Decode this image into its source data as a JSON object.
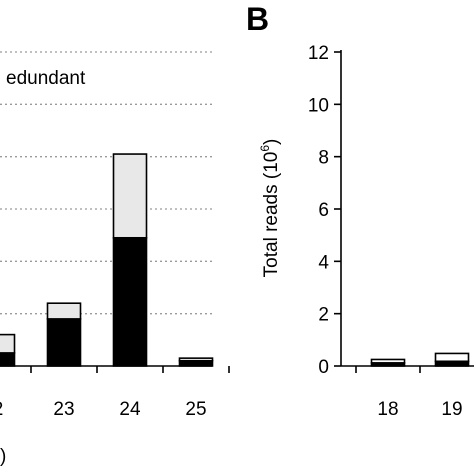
{
  "chart_data": [
    {
      "type": "bar",
      "stacked": true,
      "legend_text": "edundant",
      "categories": [
        "2",
        "23",
        "24",
        "25"
      ],
      "series": [
        {
          "color": "#000000",
          "values": [
            0.5,
            1.8,
            4.9,
            0.2
          ]
        },
        {
          "color": "#e8e8e8",
          "values": [
            0.7,
            0.6,
            3.2,
            0.1
          ]
        }
      ],
      "xlabel_fragment": ")",
      "ylim": [
        0,
        12
      ],
      "grid": true
    },
    {
      "type": "bar",
      "stacked": true,
      "panel_label": "B",
      "categories": [
        "18",
        "19"
      ],
      "series": [
        {
          "color": "#000000",
          "values": [
            0.12,
            0.18
          ]
        },
        {
          "color": "#ffffff",
          "values": [
            0.13,
            0.3
          ]
        }
      ],
      "ylabel": "Total reads (10",
      "ylabel_sup": "6",
      "ylabel_close": ")",
      "yticks": [
        "0",
        "2",
        "4",
        "6",
        "8",
        "10",
        "12"
      ],
      "ylim": [
        0,
        12
      ],
      "grid": false
    }
  ]
}
